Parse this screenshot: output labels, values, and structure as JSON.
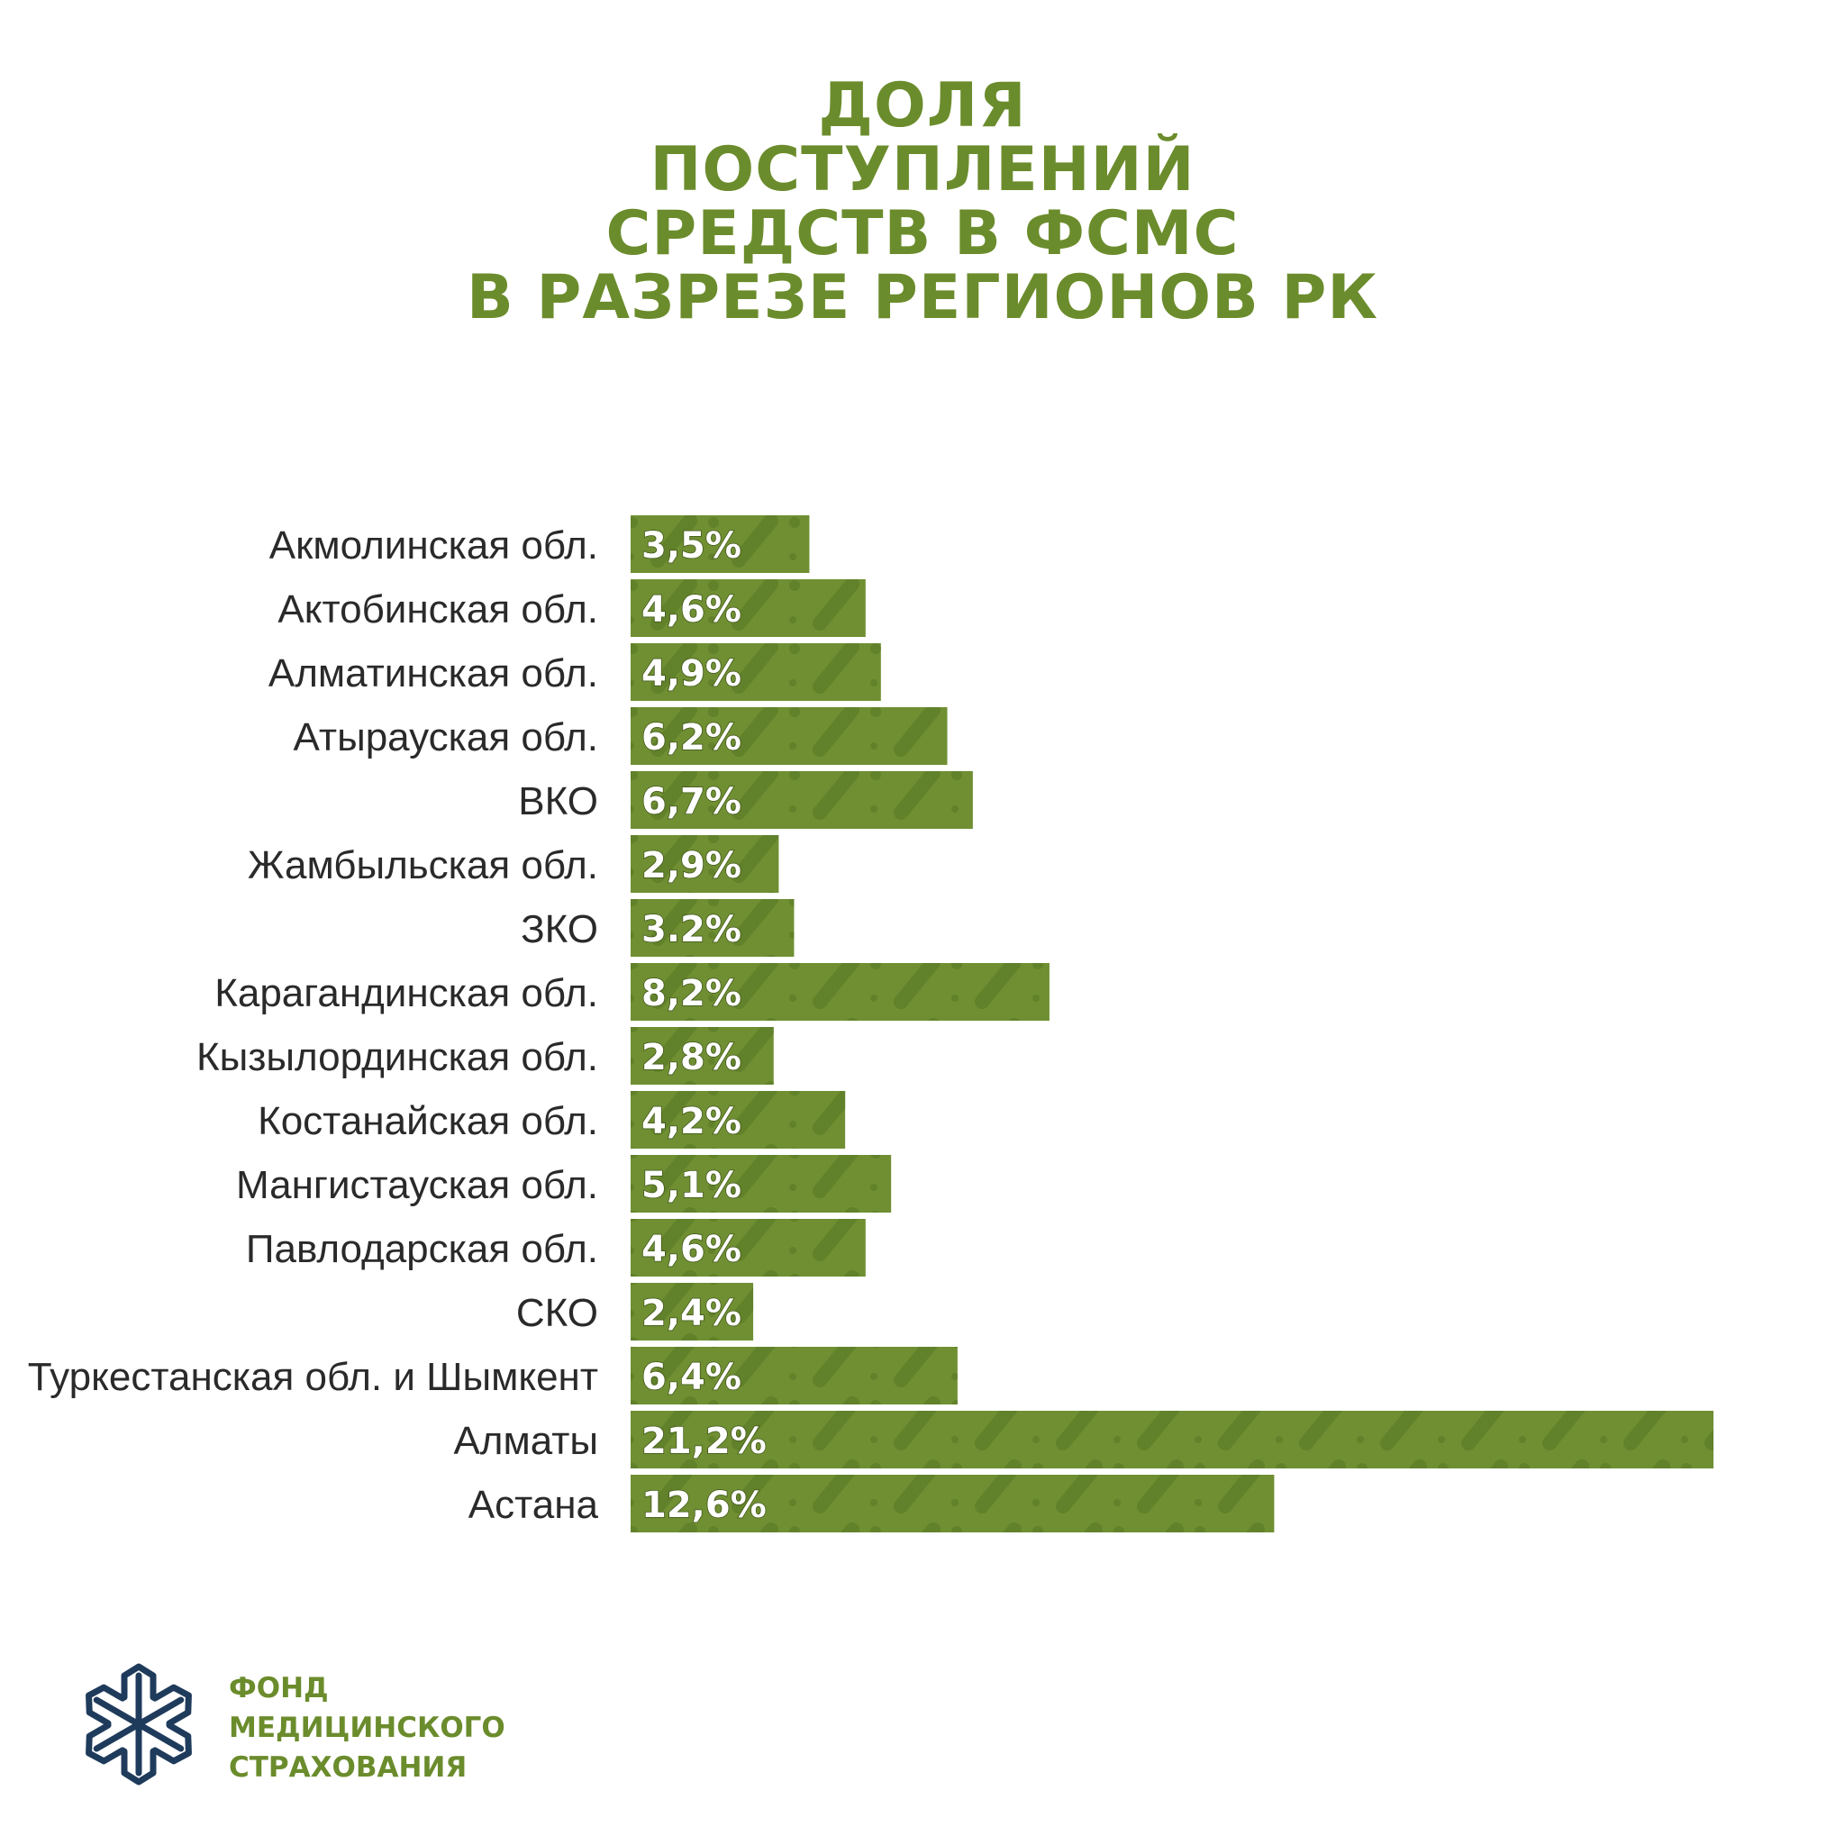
{
  "title_lines": [
    "ДОЛЯ",
    "ПОСТУПЛЕНИЙ",
    "СРЕДСТВ В ФСМС",
    "В РАЗРЕЗЕ РЕГИОНОВ РК"
  ],
  "colors": {
    "accent": "#6b8c2c",
    "bar": "#6f8f32",
    "bar_pattern": "#5f7f28",
    "logo_blue": "#1f3b5c"
  },
  "logo": {
    "icon": "snowflake-hexagon-icon",
    "lines": [
      "ФОНД",
      "МЕДИЦИНСКОГО",
      "СТРАХОВАНИЯ"
    ]
  },
  "chart_data": {
    "type": "bar",
    "orientation": "horizontal",
    "categories": [
      "Акмолинская обл.",
      "Актобинская обл.",
      "Алматинская обл.",
      "Атырауская обл.",
      "ВКО",
      "Жамбыльская обл.",
      "ЗКО",
      "Карагандинская обл.",
      "Кызылординская обл.",
      "Костанайская обл.",
      "Мангистауская обл.",
      "Павлодарская обл.",
      "СКО",
      "Туркестанская обл. и Шымкент",
      "Алматы",
      "Астана"
    ],
    "values": [
      3.5,
      4.6,
      4.9,
      6.2,
      6.7,
      2.9,
      3.2,
      8.2,
      2.8,
      4.2,
      5.1,
      4.6,
      2.4,
      6.4,
      21.2,
      12.6
    ],
    "value_labels": [
      "3,5%",
      "4,6%",
      "4,9%",
      "6,2%",
      "6,7%",
      "2,9%",
      "3.2%",
      "8,2%",
      "2,8%",
      "4,2%",
      "5,1%",
      "4,6%",
      "2,4%",
      "6,4%",
      "21,2%",
      "12,6%"
    ],
    "title": "ДОЛЯ ПОСТУПЛЕНИЙ СРЕДСТВ В ФСМС В РАЗРЕЗЕ РЕГИОНОВ РК",
    "xlabel": "",
    "ylabel": "",
    "xlim": [
      0,
      21.2
    ],
    "grid": false,
    "legend": "none"
  }
}
